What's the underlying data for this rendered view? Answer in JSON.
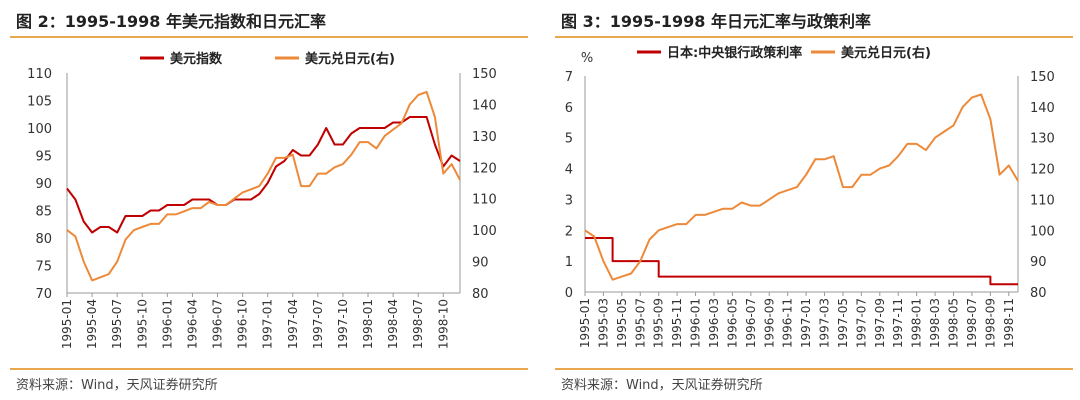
{
  "left": {
    "title": "图 2：1995-1998 年美元指数和日元汇率",
    "source": "资料来源：Wind，天风证券研究所"
  },
  "right": {
    "title": "图 3：1995-1998 年日元汇率与政策利率",
    "source": "资料来源：Wind，天风证券研究所"
  },
  "colors": {
    "red": "#c00000",
    "orange": "#ed8a3a",
    "accent_rule": "#e8a850"
  },
  "chart_data": [
    {
      "type": "line",
      "x_range": [
        "1995-01",
        "1998-12"
      ],
      "x_tick_labels": [
        "1995-01",
        "1995-04",
        "1995-07",
        "1995-10",
        "1996-01",
        "1996-04",
        "1996-07",
        "1996-10",
        "1997-01",
        "1997-04",
        "1997-07",
        "1997-10",
        "1998-01",
        "1998-04",
        "1998-07",
        "1998-10"
      ],
      "left_axis": {
        "ylim": [
          70,
          110
        ],
        "ticks": [
          "70",
          "75",
          "80",
          "85",
          "90",
          "95",
          "100",
          "105",
          "110"
        ]
      },
      "right_axis": {
        "ylim": [
          80,
          150
        ],
        "ticks": [
          "80",
          "90",
          "100",
          "110",
          "120",
          "130",
          "140",
          "150"
        ]
      },
      "legend_placement": "top-center",
      "series": [
        {
          "name": "美元指数",
          "axis": "left",
          "color": "#c00000",
          "x": [
            "1995-01",
            "1995-02",
            "1995-03",
            "1995-04",
            "1995-05",
            "1995-06",
            "1995-07",
            "1995-08",
            "1995-09",
            "1995-10",
            "1995-11",
            "1995-12",
            "1996-01",
            "1996-02",
            "1996-03",
            "1996-04",
            "1996-05",
            "1996-06",
            "1996-07",
            "1996-08",
            "1996-09",
            "1996-10",
            "1996-11",
            "1996-12",
            "1997-01",
            "1997-02",
            "1997-03",
            "1997-04",
            "1997-05",
            "1997-06",
            "1997-07",
            "1997-08",
            "1997-09",
            "1997-10",
            "1997-11",
            "1997-12",
            "1998-01",
            "1998-02",
            "1998-03",
            "1998-04",
            "1998-05",
            "1998-06",
            "1998-07",
            "1998-08",
            "1998-09",
            "1998-10",
            "1998-11",
            "1998-12"
          ],
          "values": [
            89,
            87,
            83,
            81,
            82,
            82,
            81,
            84,
            84,
            84,
            85,
            85,
            86,
            86,
            86,
            87,
            87,
            87,
            86,
            86,
            87,
            87,
            87,
            88,
            90,
            93,
            94,
            96,
            95,
            95,
            97,
            100,
            97,
            97,
            99,
            100,
            100,
            100,
            100,
            101,
            101,
            102,
            102,
            102,
            97,
            93,
            95,
            94
          ]
        },
        {
          "name": "美元兑日元(右)",
          "axis": "right",
          "color": "#ed8a3a",
          "x": [
            "1995-01",
            "1995-02",
            "1995-03",
            "1995-04",
            "1995-05",
            "1995-06",
            "1995-07",
            "1995-08",
            "1995-09",
            "1995-10",
            "1995-11",
            "1995-12",
            "1996-01",
            "1996-02",
            "1996-03",
            "1996-04",
            "1996-05",
            "1996-06",
            "1996-07",
            "1996-08",
            "1996-09",
            "1996-10",
            "1996-11",
            "1996-12",
            "1997-01",
            "1997-02",
            "1997-03",
            "1997-04",
            "1997-05",
            "1997-06",
            "1997-07",
            "1997-08",
            "1997-09",
            "1997-10",
            "1997-11",
            "1997-12",
            "1998-01",
            "1998-02",
            "1998-03",
            "1998-04",
            "1998-05",
            "1998-06",
            "1998-07",
            "1998-08",
            "1998-09",
            "1998-10",
            "1998-11",
            "1998-12"
          ],
          "values": [
            100,
            98,
            90,
            84,
            85,
            86,
            90,
            97,
            100,
            101,
            102,
            102,
            105,
            105,
            106,
            107,
            107,
            109,
            108,
            108,
            110,
            112,
            113,
            114,
            118,
            123,
            123,
            124,
            114,
            114,
            118,
            118,
            120,
            121,
            124,
            128,
            128,
            126,
            130,
            132,
            134,
            140,
            143,
            144,
            136,
            118,
            121,
            116
          ]
        }
      ]
    },
    {
      "type": "line",
      "x_range": [
        "1995-01",
        "1998-12"
      ],
      "x_tick_labels": [
        "1995-01",
        "1995-03",
        "1995-05",
        "1995-07",
        "1995-09",
        "1995-11",
        "1996-01",
        "1996-03",
        "1996-05",
        "1996-07",
        "1996-09",
        "1996-11",
        "1997-01",
        "1997-03",
        "1997-05",
        "1997-07",
        "1997-09",
        "1997-11",
        "1998-01",
        "1998-03",
        "1998-05",
        "1998-07",
        "1998-09",
        "1998-11"
      ],
      "left_axis": {
        "label": "%",
        "ylim": [
          0,
          7
        ],
        "ticks": [
          "0",
          "1",
          "2",
          "3",
          "4",
          "5",
          "6",
          "7"
        ]
      },
      "right_axis": {
        "ylim": [
          80,
          150
        ],
        "ticks": [
          "80",
          "90",
          "100",
          "110",
          "120",
          "130",
          "140",
          "150"
        ]
      },
      "legend_placement": "top-center",
      "series": [
        {
          "name": "日本:中央银行政策利率",
          "axis": "left",
          "color": "#c00000",
          "step": true,
          "x": [
            "1995-01",
            "1995-04",
            "1995-09",
            "1998-09",
            "1998-12"
          ],
          "values": [
            1.75,
            1.0,
            0.5,
            0.25,
            0.25
          ]
        },
        {
          "name": "美元兑日元(右)",
          "axis": "right",
          "color": "#ed8a3a",
          "x": [
            "1995-01",
            "1995-02",
            "1995-03",
            "1995-04",
            "1995-05",
            "1995-06",
            "1995-07",
            "1995-08",
            "1995-09",
            "1995-10",
            "1995-11",
            "1995-12",
            "1996-01",
            "1996-02",
            "1996-03",
            "1996-04",
            "1996-05",
            "1996-06",
            "1996-07",
            "1996-08",
            "1996-09",
            "1996-10",
            "1996-11",
            "1996-12",
            "1997-01",
            "1997-02",
            "1997-03",
            "1997-04",
            "1997-05",
            "1997-06",
            "1997-07",
            "1997-08",
            "1997-09",
            "1997-10",
            "1997-11",
            "1997-12",
            "1998-01",
            "1998-02",
            "1998-03",
            "1998-04",
            "1998-05",
            "1998-06",
            "1998-07",
            "1998-08",
            "1998-09",
            "1998-10",
            "1998-11",
            "1998-12"
          ],
          "values": [
            100,
            98,
            90,
            84,
            85,
            86,
            90,
            97,
            100,
            101,
            102,
            102,
            105,
            105,
            106,
            107,
            107,
            109,
            108,
            108,
            110,
            112,
            113,
            114,
            118,
            123,
            123,
            124,
            114,
            114,
            118,
            118,
            120,
            121,
            124,
            128,
            128,
            126,
            130,
            132,
            134,
            140,
            143,
            144,
            136,
            118,
            121,
            116
          ]
        }
      ]
    }
  ]
}
